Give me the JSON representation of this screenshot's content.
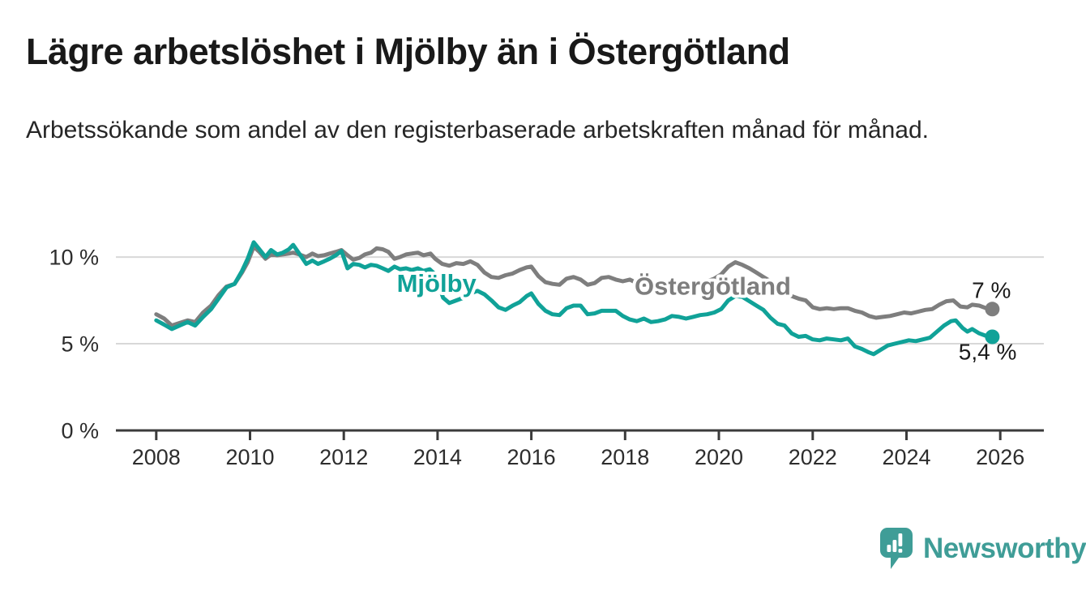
{
  "header": {
    "title": "Lägre arbetslöshet i Mjölby än i Östergötland",
    "subtitle": "Arbetssökande som andel av den registerbaserade arbetskraften månad för månad."
  },
  "brand": {
    "name": "Newsworthy",
    "color": "#3f9d97",
    "icon": "newsworthy-speech-bubble-bar-chart-icon"
  },
  "chart_data": {
    "type": "line",
    "title": "Lägre arbetslöshet i Mjölby än i Östergötland",
    "subtitle": "Arbetssökande som andel av den registerbaserade arbetskraften månad för månad.",
    "xlabel": "",
    "ylabel": "",
    "unit": "%",
    "xlim": [
      2007.14,
      2026.93
    ],
    "ylim": [
      0,
      11.5
    ],
    "grid": "horizontal",
    "grid_y_values": [
      5,
      10
    ],
    "x_ticks": [
      {
        "value": 2008,
        "label": "2008"
      },
      {
        "value": 2010,
        "label": "2010"
      },
      {
        "value": 2012,
        "label": "2012"
      },
      {
        "value": 2014,
        "label": "2014"
      },
      {
        "value": 2016,
        "label": "2016"
      },
      {
        "value": 2018,
        "label": "2018"
      },
      {
        "value": 2020,
        "label": "2020"
      },
      {
        "value": 2022,
        "label": "2022"
      },
      {
        "value": 2024,
        "label": "2024"
      },
      {
        "value": 2026,
        "label": "2026"
      }
    ],
    "y_ticks": [
      {
        "value": 0,
        "label": "0 %"
      },
      {
        "value": 5,
        "label": "5 %"
      },
      {
        "value": 10,
        "label": "10 %"
      }
    ],
    "legend": "inline-series-labels",
    "series": [
      {
        "name": "Östergötland",
        "color": "#7e7e7e",
        "end_value": 7.0,
        "end_label": "7 %",
        "end_label_offset": [
          23,
          -14
        ],
        "inline_label_at": {
          "x": 2019.87,
          "y": 8.35
        },
        "points": [
          [
            2008.0,
            6.7
          ],
          [
            2008.17,
            6.45
          ],
          [
            2008.33,
            6.05
          ],
          [
            2008.5,
            6.2
          ],
          [
            2008.67,
            6.35
          ],
          [
            2008.83,
            6.25
          ],
          [
            2009.0,
            6.8
          ],
          [
            2009.17,
            7.2
          ],
          [
            2009.33,
            7.8
          ],
          [
            2009.5,
            8.3
          ],
          [
            2009.67,
            8.45
          ],
          [
            2009.83,
            9.1
          ],
          [
            2009.95,
            9.7
          ],
          [
            2010.08,
            10.6
          ],
          [
            2010.2,
            10.3
          ],
          [
            2010.33,
            9.9
          ],
          [
            2010.45,
            10.15
          ],
          [
            2010.58,
            10.1
          ],
          [
            2010.7,
            10.15
          ],
          [
            2010.83,
            10.2
          ],
          [
            2010.92,
            10.25
          ],
          [
            2011.05,
            10.15
          ],
          [
            2011.2,
            10.0
          ],
          [
            2011.33,
            10.2
          ],
          [
            2011.45,
            10.05
          ],
          [
            2011.58,
            10.1
          ],
          [
            2011.7,
            10.2
          ],
          [
            2011.83,
            10.3
          ],
          [
            2011.95,
            10.4
          ],
          [
            2012.08,
            10.1
          ],
          [
            2012.2,
            9.85
          ],
          [
            2012.33,
            9.95
          ],
          [
            2012.45,
            10.15
          ],
          [
            2012.58,
            10.25
          ],
          [
            2012.7,
            10.5
          ],
          [
            2012.83,
            10.45
          ],
          [
            2012.95,
            10.3
          ],
          [
            2013.08,
            9.9
          ],
          [
            2013.2,
            10.0
          ],
          [
            2013.33,
            10.15
          ],
          [
            2013.45,
            10.2
          ],
          [
            2013.58,
            10.25
          ],
          [
            2013.7,
            10.1
          ],
          [
            2013.85,
            10.2
          ],
          [
            2013.95,
            9.9
          ],
          [
            2014.1,
            9.6
          ],
          [
            2014.25,
            9.5
          ],
          [
            2014.4,
            9.65
          ],
          [
            2014.55,
            9.6
          ],
          [
            2014.7,
            9.75
          ],
          [
            2014.85,
            9.55
          ],
          [
            2015.0,
            9.1
          ],
          [
            2015.15,
            8.85
          ],
          [
            2015.3,
            8.8
          ],
          [
            2015.45,
            8.95
          ],
          [
            2015.6,
            9.05
          ],
          [
            2015.75,
            9.25
          ],
          [
            2015.9,
            9.4
          ],
          [
            2016.0,
            9.45
          ],
          [
            2016.15,
            8.9
          ],
          [
            2016.3,
            8.55
          ],
          [
            2016.45,
            8.45
          ],
          [
            2016.6,
            8.4
          ],
          [
            2016.75,
            8.75
          ],
          [
            2016.9,
            8.85
          ],
          [
            2017.05,
            8.7
          ],
          [
            2017.2,
            8.4
          ],
          [
            2017.35,
            8.5
          ],
          [
            2017.5,
            8.8
          ],
          [
            2017.65,
            8.85
          ],
          [
            2017.8,
            8.7
          ],
          [
            2017.95,
            8.6
          ],
          [
            2018.1,
            8.7
          ],
          [
            2018.25,
            8.5
          ],
          [
            2018.4,
            8.4
          ],
          [
            2018.55,
            8.45
          ],
          [
            2018.7,
            8.4
          ],
          [
            2018.85,
            8.35
          ],
          [
            2019.0,
            8.4
          ],
          [
            2019.15,
            8.35
          ],
          [
            2019.3,
            8.3
          ],
          [
            2019.45,
            8.4
          ],
          [
            2019.6,
            8.5
          ],
          [
            2019.75,
            8.6
          ],
          [
            2019.9,
            8.75
          ],
          [
            2020.05,
            9.0
          ],
          [
            2020.2,
            9.45
          ],
          [
            2020.35,
            9.7
          ],
          [
            2020.5,
            9.55
          ],
          [
            2020.65,
            9.35
          ],
          [
            2020.8,
            9.1
          ],
          [
            2020.95,
            8.85
          ],
          [
            2021.1,
            8.6
          ],
          [
            2021.25,
            8.3
          ],
          [
            2021.4,
            8.0
          ],
          [
            2021.55,
            7.75
          ],
          [
            2021.7,
            7.6
          ],
          [
            2021.85,
            7.5
          ],
          [
            2022.0,
            7.1
          ],
          [
            2022.15,
            7.0
          ],
          [
            2022.3,
            7.05
          ],
          [
            2022.45,
            7.0
          ],
          [
            2022.6,
            7.05
          ],
          [
            2022.75,
            7.05
          ],
          [
            2022.9,
            6.9
          ],
          [
            2023.05,
            6.8
          ],
          [
            2023.2,
            6.6
          ],
          [
            2023.35,
            6.5
          ],
          [
            2023.5,
            6.55
          ],
          [
            2023.65,
            6.6
          ],
          [
            2023.8,
            6.7
          ],
          [
            2023.95,
            6.8
          ],
          [
            2024.1,
            6.75
          ],
          [
            2024.25,
            6.85
          ],
          [
            2024.4,
            6.95
          ],
          [
            2024.55,
            7.0
          ],
          [
            2024.7,
            7.25
          ],
          [
            2024.85,
            7.45
          ],
          [
            2025.0,
            7.5
          ],
          [
            2025.15,
            7.15
          ],
          [
            2025.3,
            7.1
          ],
          [
            2025.4,
            7.25
          ],
          [
            2025.55,
            7.2
          ],
          [
            2025.7,
            7.05
          ],
          [
            2025.83,
            7.0
          ]
        ]
      },
      {
        "name": "Mjölby",
        "color": "#10a298",
        "end_value": 5.4,
        "end_label": "5,4 %",
        "end_label_offset": [
          30,
          28
        ],
        "inline_label_at": {
          "x": 2013.98,
          "y": 8.5
        },
        "points": [
          [
            2008.0,
            6.35
          ],
          [
            2008.17,
            6.1
          ],
          [
            2008.33,
            5.85
          ],
          [
            2008.5,
            6.05
          ],
          [
            2008.67,
            6.25
          ],
          [
            2008.83,
            6.05
          ],
          [
            2009.0,
            6.55
          ],
          [
            2009.17,
            7.0
          ],
          [
            2009.33,
            7.6
          ],
          [
            2009.5,
            8.25
          ],
          [
            2009.67,
            8.45
          ],
          [
            2009.83,
            9.2
          ],
          [
            2009.95,
            9.9
          ],
          [
            2010.08,
            10.85
          ],
          [
            2010.2,
            10.45
          ],
          [
            2010.33,
            10.0
          ],
          [
            2010.45,
            10.4
          ],
          [
            2010.58,
            10.15
          ],
          [
            2010.7,
            10.25
          ],
          [
            2010.83,
            10.45
          ],
          [
            2010.92,
            10.7
          ],
          [
            2011.05,
            10.2
          ],
          [
            2011.2,
            9.6
          ],
          [
            2011.33,
            9.8
          ],
          [
            2011.45,
            9.6
          ],
          [
            2011.58,
            9.75
          ],
          [
            2011.7,
            9.9
          ],
          [
            2011.83,
            10.1
          ],
          [
            2011.95,
            10.35
          ],
          [
            2012.08,
            9.35
          ],
          [
            2012.2,
            9.6
          ],
          [
            2012.33,
            9.55
          ],
          [
            2012.45,
            9.4
          ],
          [
            2012.58,
            9.55
          ],
          [
            2012.7,
            9.5
          ],
          [
            2012.83,
            9.35
          ],
          [
            2012.95,
            9.2
          ],
          [
            2013.08,
            9.45
          ],
          [
            2013.2,
            9.3
          ],
          [
            2013.33,
            9.35
          ],
          [
            2013.45,
            9.25
          ],
          [
            2013.58,
            9.35
          ],
          [
            2013.7,
            9.2
          ],
          [
            2013.83,
            9.3
          ],
          [
            2013.95,
            9.0
          ],
          [
            2014.05,
            8.2
          ],
          [
            2014.12,
            7.65
          ],
          [
            2014.25,
            7.35
          ],
          [
            2014.4,
            7.5
          ],
          [
            2014.55,
            7.65
          ],
          [
            2014.7,
            7.9
          ],
          [
            2014.85,
            8.05
          ],
          [
            2015.0,
            7.85
          ],
          [
            2015.15,
            7.5
          ],
          [
            2015.3,
            7.1
          ],
          [
            2015.45,
            6.95
          ],
          [
            2015.6,
            7.2
          ],
          [
            2015.75,
            7.4
          ],
          [
            2015.9,
            7.75
          ],
          [
            2016.0,
            7.9
          ],
          [
            2016.15,
            7.3
          ],
          [
            2016.3,
            6.9
          ],
          [
            2016.45,
            6.7
          ],
          [
            2016.6,
            6.65
          ],
          [
            2016.75,
            7.05
          ],
          [
            2016.9,
            7.2
          ],
          [
            2017.05,
            7.2
          ],
          [
            2017.2,
            6.7
          ],
          [
            2017.35,
            6.75
          ],
          [
            2017.5,
            6.9
          ],
          [
            2017.65,
            6.9
          ],
          [
            2017.8,
            6.9
          ],
          [
            2017.95,
            6.6
          ],
          [
            2018.1,
            6.4
          ],
          [
            2018.25,
            6.3
          ],
          [
            2018.4,
            6.45
          ],
          [
            2018.55,
            6.25
          ],
          [
            2018.7,
            6.3
          ],
          [
            2018.85,
            6.4
          ],
          [
            2019.0,
            6.6
          ],
          [
            2019.15,
            6.55
          ],
          [
            2019.3,
            6.45
          ],
          [
            2019.45,
            6.55
          ],
          [
            2019.6,
            6.65
          ],
          [
            2019.75,
            6.7
          ],
          [
            2019.9,
            6.8
          ],
          [
            2020.05,
            7.0
          ],
          [
            2020.2,
            7.5
          ],
          [
            2020.35,
            7.75
          ],
          [
            2020.5,
            7.7
          ],
          [
            2020.65,
            7.45
          ],
          [
            2020.8,
            7.2
          ],
          [
            2020.95,
            6.95
          ],
          [
            2021.1,
            6.5
          ],
          [
            2021.25,
            6.15
          ],
          [
            2021.4,
            6.05
          ],
          [
            2021.55,
            5.6
          ],
          [
            2021.7,
            5.4
          ],
          [
            2021.85,
            5.45
          ],
          [
            2022.0,
            5.25
          ],
          [
            2022.15,
            5.2
          ],
          [
            2022.3,
            5.3
          ],
          [
            2022.45,
            5.25
          ],
          [
            2022.6,
            5.2
          ],
          [
            2022.75,
            5.3
          ],
          [
            2022.9,
            4.85
          ],
          [
            2023.05,
            4.7
          ],
          [
            2023.2,
            4.5
          ],
          [
            2023.3,
            4.4
          ],
          [
            2023.45,
            4.65
          ],
          [
            2023.6,
            4.9
          ],
          [
            2023.75,
            5.0
          ],
          [
            2023.9,
            5.1
          ],
          [
            2024.05,
            5.2
          ],
          [
            2024.2,
            5.15
          ],
          [
            2024.35,
            5.25
          ],
          [
            2024.5,
            5.35
          ],
          [
            2024.65,
            5.7
          ],
          [
            2024.8,
            6.05
          ],
          [
            2024.95,
            6.3
          ],
          [
            2025.05,
            6.35
          ],
          [
            2025.2,
            5.9
          ],
          [
            2025.3,
            5.7
          ],
          [
            2025.4,
            5.85
          ],
          [
            2025.55,
            5.6
          ],
          [
            2025.7,
            5.45
          ],
          [
            2025.83,
            5.4
          ]
        ]
      }
    ]
  }
}
